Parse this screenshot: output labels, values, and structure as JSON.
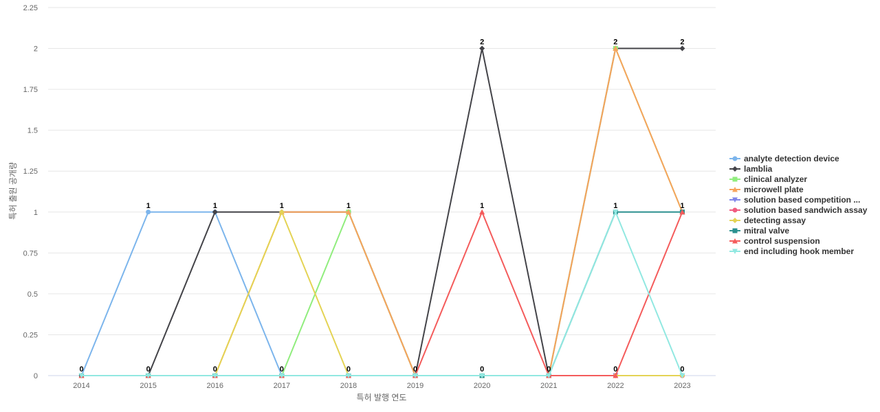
{
  "chart_data": {
    "type": "line",
    "title": "",
    "xlabel": "특허 발행 연도",
    "ylabel": "특허 출원 공개량",
    "ylim": [
      0,
      2.25
    ],
    "yticks": [
      "0",
      "0.25",
      "0.5",
      "0.75",
      "1",
      "1.25",
      "1.5",
      "1.75",
      "2",
      "2.25"
    ],
    "categories": [
      "2014",
      "2015",
      "2016",
      "2017",
      "2018",
      "2019",
      "2020",
      "2021",
      "2022",
      "2023"
    ],
    "grid": true,
    "legend_position": "right",
    "series": [
      {
        "name": "analyte detection device",
        "color": "#7cb5ec",
        "marker": "circle",
        "values": [
          0,
          1,
          1,
          0,
          0,
          0,
          0,
          0,
          0,
          0
        ]
      },
      {
        "name": "lamblia",
        "color": "#434348",
        "marker": "diamond",
        "values": [
          0,
          0,
          1,
          1,
          1,
          0,
          2,
          0,
          2,
          2
        ]
      },
      {
        "name": "clinical analyzer",
        "color": "#90ed7d",
        "marker": "square",
        "values": [
          0,
          0,
          0,
          0,
          1,
          0,
          0,
          0,
          2,
          1
        ]
      },
      {
        "name": "microwell plate",
        "color": "#f7a35c",
        "marker": "triangle",
        "values": [
          0,
          0,
          0,
          1,
          1,
          0,
          0,
          0,
          2,
          1
        ]
      },
      {
        "name": "solution based competition ...",
        "color": "#8085e9",
        "marker": "triangle-down",
        "values": [
          0,
          0,
          0,
          0,
          0,
          0,
          0,
          0,
          0,
          0
        ]
      },
      {
        "name": "solution based sandwich assay",
        "color": "#f15c80",
        "marker": "circle",
        "values": [
          0,
          0,
          0,
          0,
          0,
          0,
          0,
          0,
          0,
          0
        ]
      },
      {
        "name": "detecting assay",
        "color": "#e4d354",
        "marker": "diamond",
        "values": [
          0,
          0,
          0,
          1,
          0,
          0,
          0,
          0,
          0,
          0
        ]
      },
      {
        "name": "mitral valve",
        "color": "#2b908f",
        "marker": "square",
        "values": [
          0,
          0,
          0,
          0,
          0,
          0,
          0,
          0,
          1,
          1
        ]
      },
      {
        "name": "control suspension",
        "color": "#f45b5b",
        "marker": "triangle",
        "values": [
          0,
          0,
          0,
          0,
          0,
          0,
          1,
          0,
          0,
          1
        ]
      },
      {
        "name": "end including hook member",
        "color": "#91e8e1",
        "marker": "triangle-down",
        "values": [
          0,
          0,
          0,
          0,
          0,
          0,
          0,
          0,
          1,
          0
        ]
      }
    ],
    "data_labels": [
      {
        "category": "2014",
        "value": 0,
        "text": "0"
      },
      {
        "category": "2015",
        "value": 1,
        "text": "1"
      },
      {
        "category": "2015",
        "value": 0,
        "text": "0"
      },
      {
        "category": "2016",
        "value": 1,
        "text": "1"
      },
      {
        "category": "2016",
        "value": 0,
        "text": "0"
      },
      {
        "category": "2017",
        "value": 1,
        "text": "1"
      },
      {
        "category": "2017",
        "value": 0,
        "text": "0"
      },
      {
        "category": "2018",
        "value": 1,
        "text": "1"
      },
      {
        "category": "2018",
        "value": 0,
        "text": "0"
      },
      {
        "category": "2019",
        "value": 0,
        "text": "0"
      },
      {
        "category": "2020",
        "value": 2,
        "text": "2"
      },
      {
        "category": "2020",
        "value": 1,
        "text": "1"
      },
      {
        "category": "2020",
        "value": 0,
        "text": "0"
      },
      {
        "category": "2021",
        "value": 0,
        "text": "0"
      },
      {
        "category": "2022",
        "value": 2,
        "text": "2"
      },
      {
        "category": "2022",
        "value": 1,
        "text": "1"
      },
      {
        "category": "2022",
        "value": 0,
        "text": "0"
      },
      {
        "category": "2023",
        "value": 2,
        "text": "2"
      },
      {
        "category": "2023",
        "value": 1,
        "text": "1"
      },
      {
        "category": "2023",
        "value": 0,
        "text": "0"
      }
    ]
  }
}
